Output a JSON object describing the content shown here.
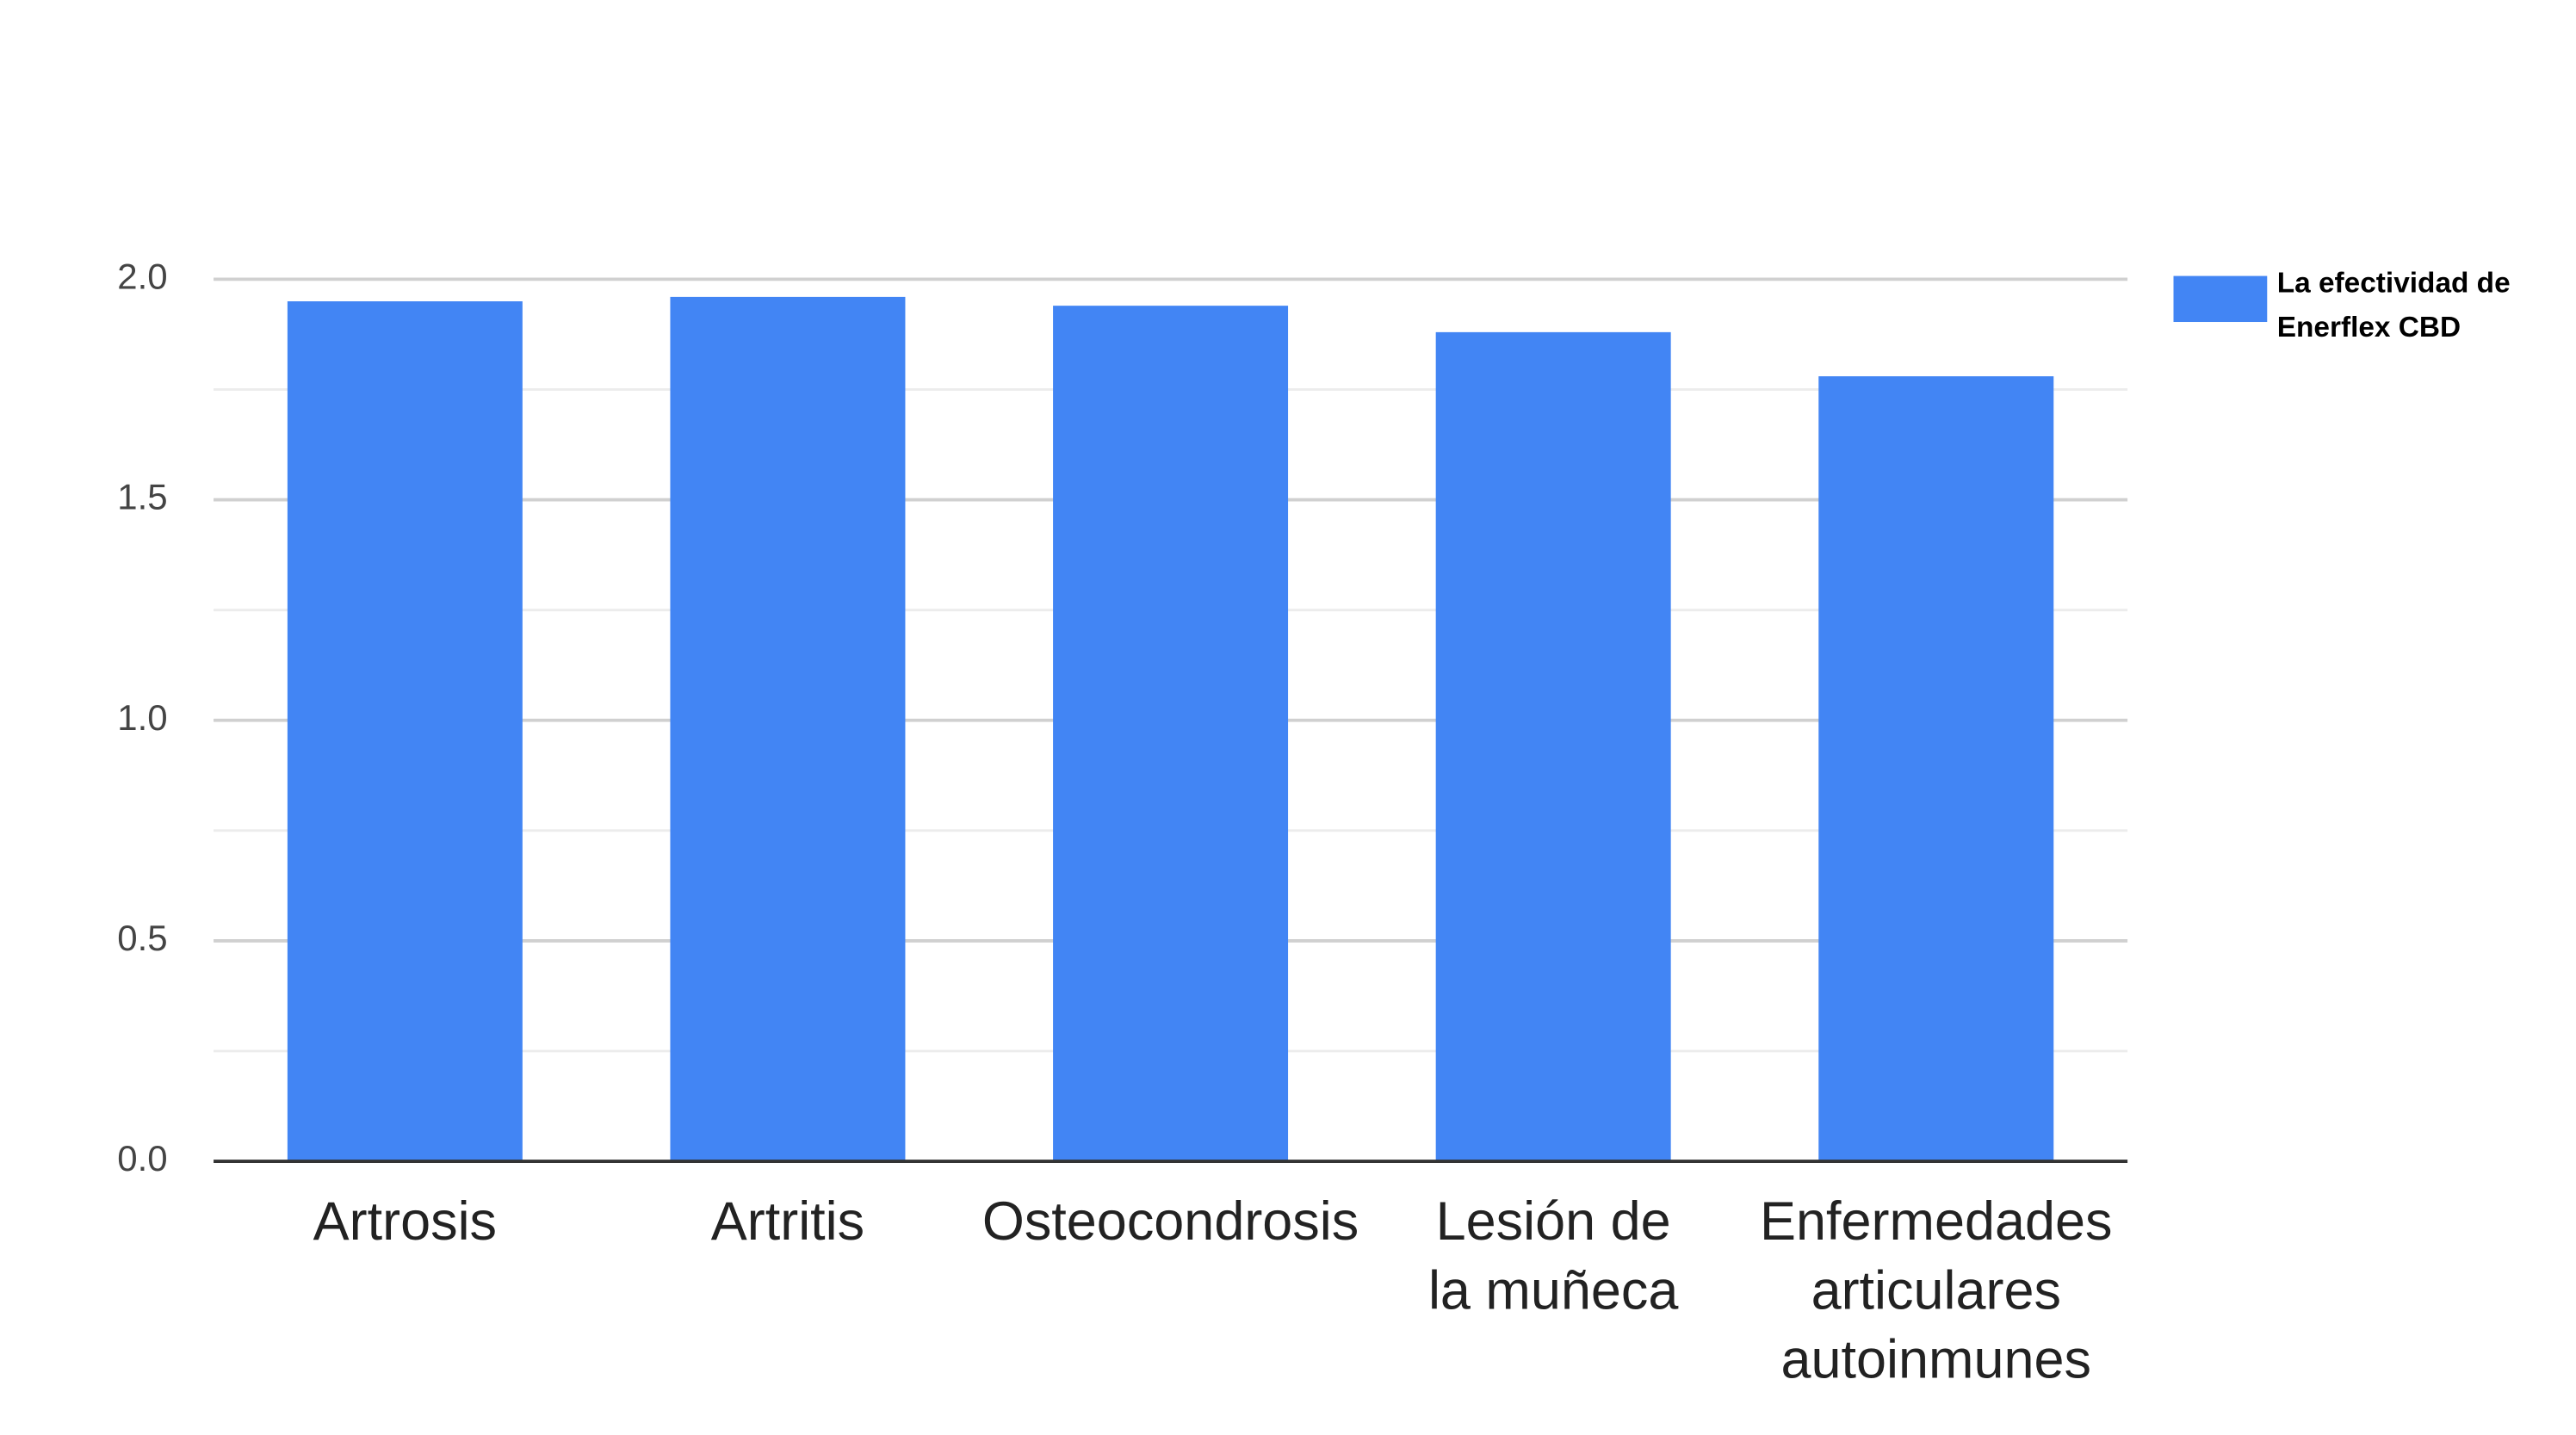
{
  "chart_data": {
    "type": "bar",
    "categories": [
      [
        "Artrosis"
      ],
      [
        "Artritis"
      ],
      [
        "Osteocondrosis"
      ],
      [
        "Lesión de",
        "la muñeca"
      ],
      [
        "Enfermedades",
        "articulares",
        "autoinmunes"
      ]
    ],
    "series": [
      {
        "name": "La efectividad de Enerflex CBD",
        "color": "#4285f4",
        "values": [
          1.95,
          1.96,
          1.94,
          1.88,
          1.78
        ]
      }
    ],
    "ylim": [
      0,
      2
    ],
    "yticks": [
      {
        "value": 0,
        "label": "0.0"
      },
      0.5,
      {
        "value": 1,
        "label": "1.0"
      },
      1.5,
      {
        "value": 2,
        "label": "2.0"
      }
    ],
    "minor_yticks": [
      0.25,
      0.75,
      1.25,
      1.75
    ],
    "grid": true,
    "legend": "right"
  }
}
